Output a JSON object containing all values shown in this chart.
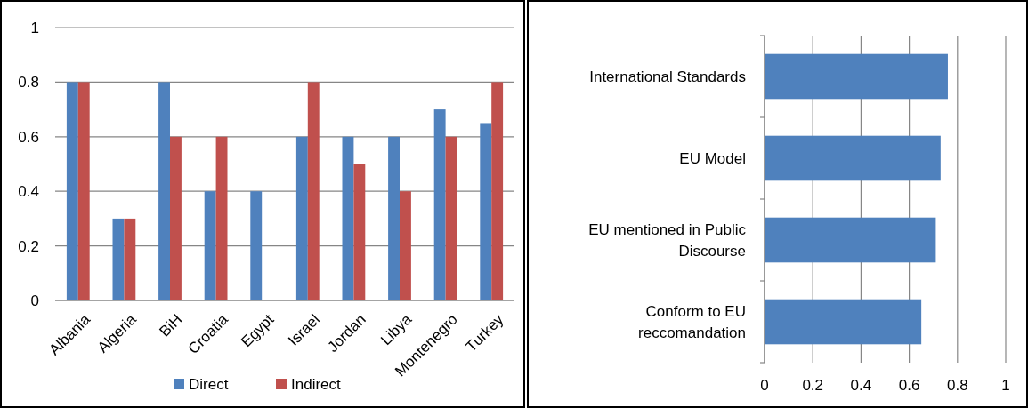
{
  "chart_data": [
    {
      "type": "bar",
      "categories": [
        "Albania",
        "Algeria",
        "BiH",
        "Croatia",
        "Egypt",
        "Israel",
        "Jordan",
        "Libya",
        "Montenegro",
        "Turkey"
      ],
      "series": [
        {
          "name": "Direct",
          "color": "#4f81bd",
          "values": [
            0.8,
            0.3,
            0.8,
            0.4,
            0.4,
            0.6,
            0.6,
            0.6,
            0.7,
            0.65
          ]
        },
        {
          "name": "Indirect",
          "color": "#c0504d",
          "values": [
            0.8,
            0.3,
            0.6,
            0.6,
            0,
            0.8,
            0.5,
            0.4,
            0.6,
            0.8
          ]
        }
      ],
      "ylim": [
        0,
        1
      ],
      "yticks": [
        0,
        0.2,
        0.4,
        0.6,
        0.8,
        1
      ],
      "grid": "y",
      "legend": "bottom"
    },
    {
      "type": "bar",
      "orientation": "horizontal",
      "categories": [
        "International Standards",
        "EU Model",
        "EU mentioned in Public Discourse",
        "Conform to EU reccomandation"
      ],
      "values": [
        0.76,
        0.73,
        0.71,
        0.65
      ],
      "color": "#4f81bd",
      "xlim": [
        0,
        1
      ],
      "xticks": [
        0,
        0.2,
        0.4,
        0.6,
        0.8,
        1
      ],
      "grid": "x"
    }
  ]
}
